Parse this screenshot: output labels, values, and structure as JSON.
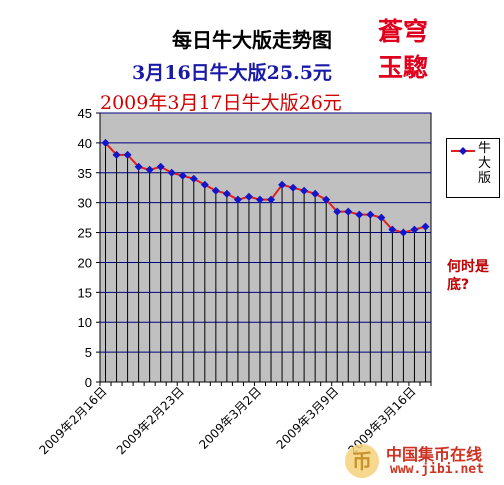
{
  "title": "每日牛大版走势图",
  "subtitle_1": "3月16日牛大版25.5元",
  "subtitle_2": "2009年3月17日牛大版26元",
  "stamp_line_1": "蒼穹",
  "stamp_line_2": "玉騘",
  "annotation": "何时是底?",
  "watermark": {
    "name": "中国集币在线",
    "url": "www.jibi.net"
  },
  "colors": {
    "plot_bg": "#c0c0c0",
    "line": "#e0201e",
    "marker": "#1414c8",
    "grid": "#000080",
    "stamp": "#e0001e"
  },
  "chart_data": {
    "type": "line",
    "x": [
      "2009年2月16日",
      "2009年2月17日",
      "2009年2月18日",
      "2009年2月19日",
      "2009年2月20日",
      "2009年2月21日",
      "2009年2月22日",
      "2009年2月23日",
      "2009年2月24日",
      "2009年2月25日",
      "2009年2月26日",
      "2009年2月27日",
      "2009年2月28日",
      "2009年3月1日",
      "2009年3月2日",
      "2009年3月3日",
      "2009年3月4日",
      "2009年3月5日",
      "2009年3月6日",
      "2009年3月7日",
      "2009年3月8日",
      "2009年3月9日",
      "2009年3月10日",
      "2009年3月11日",
      "2009年3月12日",
      "2009年3月13日",
      "2009年3月14日",
      "2009年3月15日",
      "2009年3月16日",
      "2009年3月17日"
    ],
    "x_tick_labels": [
      "2009年2月16日",
      "2009年2月23日",
      "2009年3月2日",
      "2009年3月9日",
      "2009年3月16日"
    ],
    "series": [
      {
        "name": "牛大版",
        "values": [
          40,
          38,
          38,
          36,
          35.5,
          36,
          35,
          34.5,
          34,
          33,
          32,
          31.5,
          30.5,
          31,
          30.5,
          30.5,
          33,
          32.5,
          32,
          31.5,
          30.5,
          28.5,
          28.5,
          28,
          28,
          27.5,
          25.5,
          25,
          25.5,
          26
        ]
      }
    ],
    "ylim": [
      0,
      45
    ],
    "yticks": [
      0,
      5,
      10,
      15,
      20,
      25,
      30,
      35,
      40,
      45
    ],
    "grid": true,
    "legend_position": "right"
  }
}
